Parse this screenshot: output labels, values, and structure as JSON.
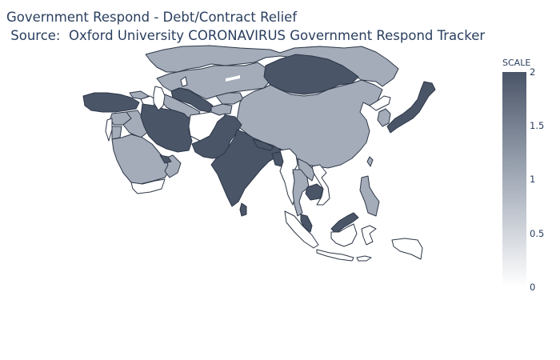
{
  "title": {
    "line1": "Government Respond - Debt/Contract Relief",
    "line2": " Source:  Oxford University CORONAVIRUS Government Respond Tracker"
  },
  "colorbar": {
    "title": "SCALE",
    "ticks": [
      "2",
      "1.5",
      "1",
      "0.5",
      "0"
    ],
    "range": [
      0,
      2
    ],
    "colors": {
      "high": "#4a5568",
      "mid": "#a4acb9",
      "low": "#ffffff"
    }
  },
  "map": {
    "region": "Asia",
    "border_color": "#2d3748",
    "countries": [
      {
        "name": "Kazakhstan",
        "value": 1
      },
      {
        "name": "Mongolia",
        "value": 2
      },
      {
        "name": "Russia",
        "value": 1
      },
      {
        "name": "China",
        "value": 1
      },
      {
        "name": "Japan",
        "value": 2
      },
      {
        "name": "South Korea",
        "value": 1
      },
      {
        "name": "North Korea",
        "value": 0
      },
      {
        "name": "Turkey",
        "value": 2
      },
      {
        "name": "Iran",
        "value": 2
      },
      {
        "name": "Pakistan",
        "value": 2
      },
      {
        "name": "Afghanistan",
        "value": 0
      },
      {
        "name": "India",
        "value": 2
      },
      {
        "name": "Saudi Arabia",
        "value": 1
      },
      {
        "name": "Yemen",
        "value": 0
      },
      {
        "name": "Myanmar",
        "value": 0
      },
      {
        "name": "Thailand",
        "value": 1
      },
      {
        "name": "Cambodia",
        "value": 2
      },
      {
        "name": "Vietnam",
        "value": 0
      },
      {
        "name": "Malaysia",
        "value": 2
      },
      {
        "name": "Philippines",
        "value": 1
      },
      {
        "name": "Indonesia",
        "value": 0
      },
      {
        "name": "Sri Lanka",
        "value": 2
      },
      {
        "name": "Bangladesh",
        "value": 2
      },
      {
        "name": "Uzbekistan",
        "value": 2
      }
    ]
  }
}
